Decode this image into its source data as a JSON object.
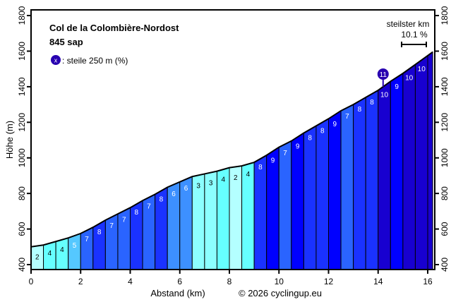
{
  "chart_data": {
    "type": "area",
    "title": "Col de la Colombière-Nordost",
    "subtitle": "845 sap",
    "legend_text": ": steile 250 m (%)",
    "legend_symbol": "x",
    "steepest_label": "steilster km",
    "steepest_value": "10.1 %",
    "xlabel": "Abstand (km)",
    "ylabel": "Höhe (m)",
    "credit": "© 2026 cyclingup.eu",
    "xlim": [
      0,
      16.28
    ],
    "ylim": [
      400,
      1850
    ],
    "x_ticks": [
      0,
      2,
      4,
      6,
      8,
      10,
      12,
      14,
      16
    ],
    "y_ticks": [
      400,
      600,
      800,
      1000,
      1200,
      1400,
      1600,
      1800
    ],
    "distance_km": [
      0,
      0.5,
      1,
      1.5,
      2,
      2.5,
      3,
      3.5,
      4,
      4.5,
      5,
      5.5,
      6,
      6.5,
      7,
      7.5,
      8,
      8.5,
      9,
      9.5,
      10,
      10.5,
      11,
      11.5,
      12,
      12.5,
      13,
      13.5,
      14,
      14.5,
      15,
      15.5,
      16,
      16.2
    ],
    "elevation_m": [
      500,
      510,
      530,
      550,
      575,
      610,
      650,
      685,
      720,
      760,
      795,
      835,
      865,
      895,
      910,
      925,
      945,
      955,
      975,
      1015,
      1060,
      1095,
      1140,
      1180,
      1220,
      1265,
      1300,
      1340,
      1380,
      1430,
      1475,
      1525,
      1575,
      1595
    ],
    "segment_gradient_labels": [
      "2",
      "4",
      "4",
      "5",
      "7",
      "8",
      "7",
      "7",
      "8",
      "7",
      "8",
      "6",
      "6",
      "3",
      "3",
      "4",
      "2",
      "4",
      "8",
      "9",
      "7",
      "9",
      "8",
      "8",
      "9",
      "7",
      "8",
      "8",
      "10",
      "9",
      "10",
      "10",
      ""
    ],
    "steepest_250m": {
      "km": 14.2,
      "value": "11"
    },
    "gradient_colors": {
      "2": "#b4ffff",
      "3": "#8cffff",
      "4": "#66ffff",
      "5": "#55c8ff",
      "6": "#3d90ff",
      "7": "#2a64ff",
      "8": "#1a32ff",
      "9": "#0000ff",
      "10": "#1800d0",
      "11": "#2800b0"
    },
    "grid": false
  }
}
